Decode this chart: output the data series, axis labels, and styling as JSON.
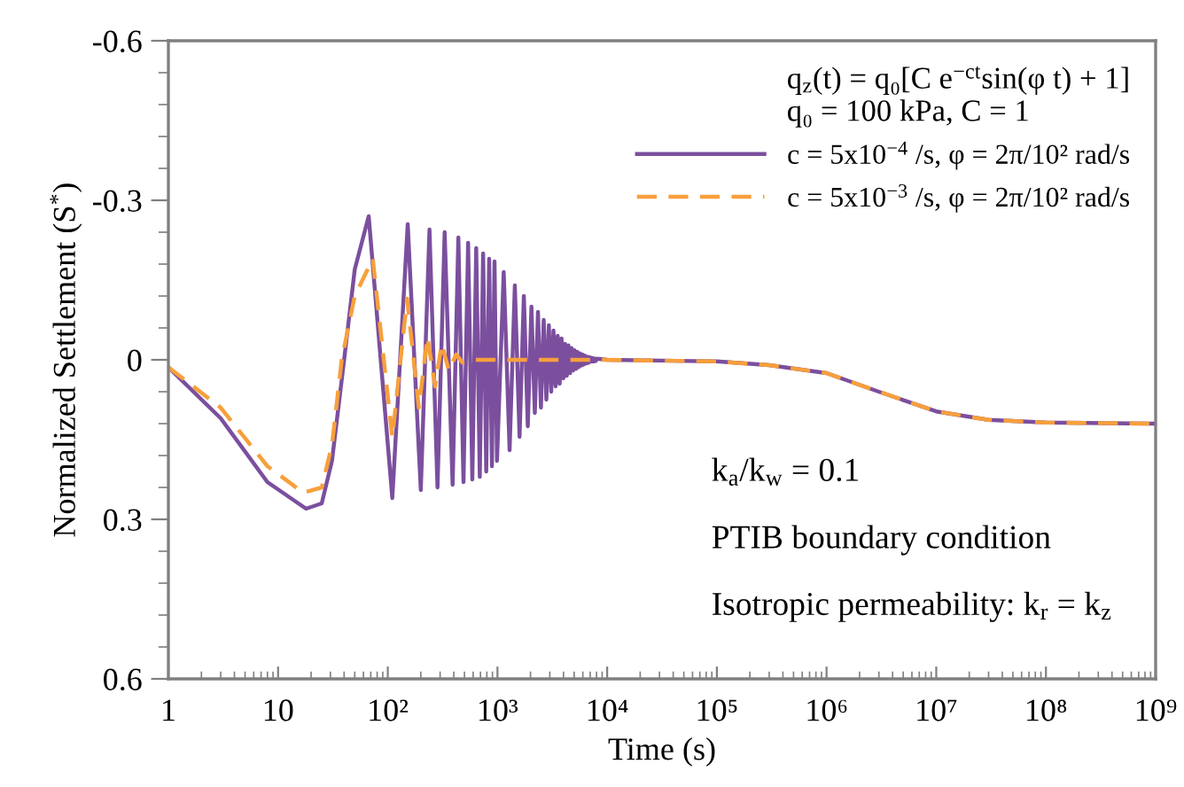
{
  "chart_data": {
    "type": "line",
    "xlabel": "Time (s)",
    "ylabel": "Normalized Settlement (S$^{*}$)",
    "legend_title": "q$_{z}$(t) = q₀[C e$^{−ct}$sin(φ t) + 1]\nq₀ = 100 kPa, C = 1",
    "log": "x",
    "xlim": [
      1,
      1000000000
    ],
    "ylim": [
      0.6,
      -0.6
    ],
    "xticks": [
      1,
      10,
      {
        "value": 100,
        "label": "10²"
      },
      {
        "value": 1000,
        "label": "10³"
      },
      {
        "value": 10000,
        "label": "10⁴"
      },
      {
        "value": 100000,
        "label": "10⁵"
      },
      {
        "value": 1000000,
        "label": "10⁶"
      },
      {
        "value": 10000000,
        "label": "10⁷"
      },
      {
        "value": 100000000,
        "label": "10⁸"
      },
      {
        "value": 1000000000,
        "label": "10⁹"
      }
    ],
    "yticks": [
      -0.6,
      -0.3,
      0,
      0.3,
      0.6
    ],
    "grid": false,
    "legend": "top right",
    "marker": "none",
    "series": [
      {
        "name": "c = 5x10$^{−4}$ /s, φ = 2π/10² rad/s",
        "color": "#7b4f9e",
        "line_style": "solid",
        "x": [
          1,
          3,
          8,
          18,
          25,
          31,
          40,
          50,
          67,
          110,
          152,
          200,
          240,
          284,
          330,
          390,
          440,
          490,
          540,
          590,
          640,
          690,
          740,
          790,
          840,
          890,
          940,
          990,
          1140,
          1290,
          1440,
          1590,
          1740,
          1890,
          2040,
          2190,
          2340,
          2490,
          2640,
          2790,
          2940,
          3090,
          3240,
          3390,
          3540,
          3690,
          3840,
          3990,
          4140,
          4290,
          4440,
          4590,
          4740,
          4890,
          5040,
          5190,
          5340,
          5490,
          5640,
          5790,
          5940,
          6090,
          6240,
          6390,
          6540,
          6690,
          6840,
          6990,
          7140,
          7290,
          7440,
          7590,
          7740,
          7890,
          8040,
          10000,
          100000,
          300000,
          1000000,
          3000000,
          10000000,
          30000000,
          100000000,
          1000000000
        ],
        "values": [
          0.014,
          0.11,
          0.23,
          0.28,
          0.27,
          0.19,
          0,
          -0.17,
          -0.27,
          0.26,
          -0.255,
          0.245,
          -0.245,
          0.24,
          -0.24,
          0.235,
          -0.23,
          0.23,
          -0.22,
          0.225,
          -0.21,
          0.22,
          -0.2,
          0.21,
          -0.19,
          0.2,
          -0.185,
          0.19,
          -0.165,
          0.17,
          -0.14,
          0.145,
          -0.12,
          0.125,
          -0.1,
          0.1,
          -0.09,
          0.09,
          -0.075,
          0.075,
          -0.065,
          0.06,
          -0.055,
          0.05,
          -0.045,
          0.045,
          -0.04,
          0.035,
          -0.03,
          0.03,
          -0.027,
          0.025,
          -0.022,
          0.02,
          -0.018,
          0.017,
          -0.015,
          0.014,
          -0.012,
          0.011,
          -0.01,
          0.009,
          -0.008,
          0.007,
          -0.006,
          0.006,
          -0.005,
          0.004,
          -0.004,
          0.003,
          -0.003,
          0.003,
          -0.002,
          0.002,
          -0.002,
          0,
          0.003,
          0.01,
          0.025,
          0.06,
          0.097,
          0.113,
          0.118,
          0.12
        ]
      },
      {
        "name": "c = 5x10$^{−3}$ /s, φ = 2π/10² rad/s",
        "color": "#f7a03c",
        "line_style": "dashed",
        "x": [
          1,
          3,
          8,
          17,
          25,
          31,
          38,
          50,
          73,
          110,
          150,
          192,
          230,
          270,
          310,
          360,
          420,
          480,
          600,
          10000,
          100000,
          300000,
          1000000,
          3000000,
          10000000,
          30000000,
          100000000,
          1000000000
        ],
        "values": [
          0.014,
          0.09,
          0.2,
          0.25,
          0.24,
          0.16,
          0,
          -0.12,
          -0.19,
          0.146,
          -0.115,
          0.09,
          -0.043,
          0.05,
          -0.03,
          0.02,
          -0.01,
          0.005,
          0,
          0,
          0.003,
          0.01,
          0.025,
          0.06,
          0.097,
          0.113,
          0.118,
          0.12
        ]
      }
    ],
    "annotations": [
      "k$_{a}$/k$_{w}$ = 0.1",
      "PTIB boundary condition",
      "Isotropic permeability: k$_{r}$ = k$_{z}$"
    ]
  }
}
